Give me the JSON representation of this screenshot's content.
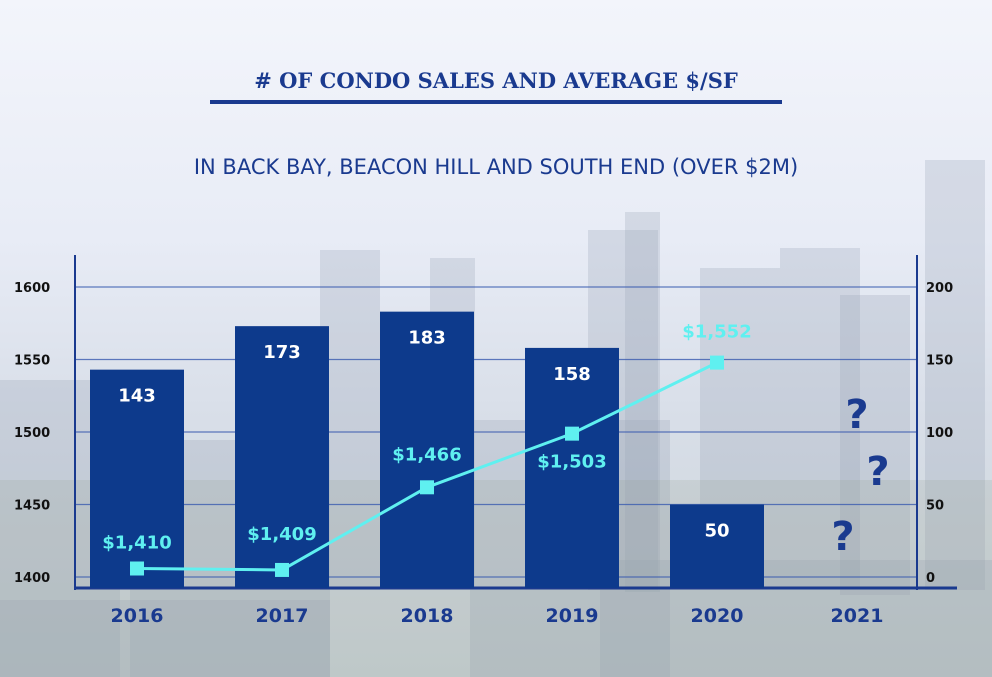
{
  "chart_data": {
    "type": "bar+line",
    "title": "# OF CONDO SALES AND AVERAGE $/SF",
    "subtitle": "IN BACK BAY, BEACON HILL AND SOUTH END (OVER $2M)",
    "categories": [
      "2016",
      "2017",
      "2018",
      "2019",
      "2020",
      "2021"
    ],
    "series": [
      {
        "name": "# of condo sales",
        "type": "bar",
        "axis": "right",
        "values": [
          143,
          173,
          183,
          158,
          50,
          null
        ],
        "labels": [
          "143",
          "173",
          "183",
          "158",
          "50",
          ""
        ]
      },
      {
        "name": "Average $/SF",
        "type": "line",
        "axis": "left",
        "values": [
          1410,
          1409,
          1466,
          1503,
          1552,
          null
        ],
        "labels": [
          "$1,410",
          "$1,409",
          "$1,466",
          "$1,503",
          "$1,552",
          ""
        ]
      }
    ],
    "unknown_markers": [
      "?",
      "?",
      "?"
    ],
    "left_axis": {
      "ylim": [
        1400,
        1600
      ],
      "ticks": [
        "1400",
        "1450",
        "1500",
        "1550",
        "1600"
      ]
    },
    "right_axis": {
      "ylim": [
        0,
        200
      ],
      "ticks": [
        "0",
        "50",
        "100",
        "150",
        "200"
      ]
    },
    "grid": true,
    "colors": {
      "bar": "#0d3a8c",
      "line": "#5ff0f0",
      "title": "#1a3a8f"
    }
  }
}
